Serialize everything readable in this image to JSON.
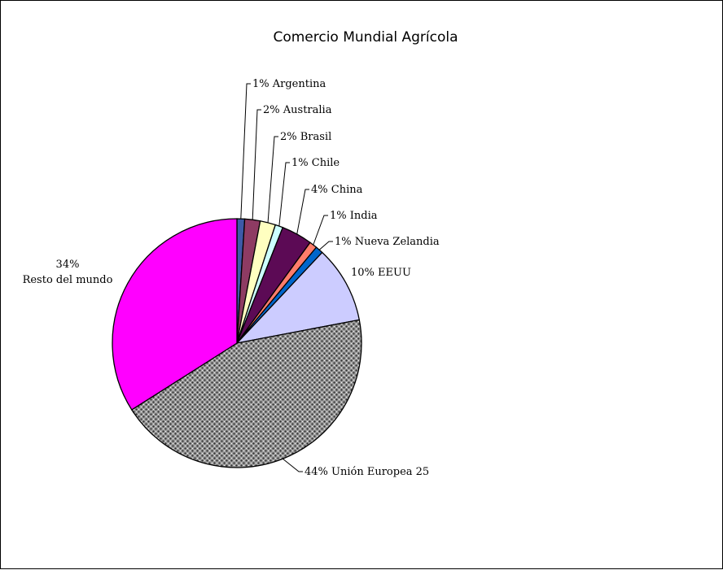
{
  "chart_data": {
    "type": "pie",
    "title": "Comercio Mundial Agrícola",
    "start_angle_deg": 90,
    "direction": "clockwise",
    "slices": [
      {
        "name": "Argentina",
        "value": 1,
        "label": "1% Argentina",
        "color": "#3d5aa8"
      },
      {
        "name": "Australia",
        "value": 2,
        "label": "2% Australia",
        "color": "#8e3b63"
      },
      {
        "name": "Brasil",
        "value": 2,
        "label": "2% Brasil",
        "color": "#ffffc0"
      },
      {
        "name": "Chile",
        "value": 1,
        "label": "1% Chile",
        "color": "#ccffff"
      },
      {
        "name": "China",
        "value": 4,
        "label": "4% China",
        "color": "#5c0a55"
      },
      {
        "name": "India",
        "value": 1,
        "label": "1% India",
        "color": "#ff7d6b"
      },
      {
        "name": "Nueva Zelandia",
        "value": 1,
        "label": "1% Nueva Zelandia",
        "color": "#0066cc"
      },
      {
        "name": "EEUU",
        "value": 10,
        "label": "10% EEUU",
        "color": "#ccccff"
      },
      {
        "name": "Unión Europea 25",
        "value": 44,
        "label": "44% Unión Europea 25",
        "color": "#8a8a8a",
        "pattern": "dots"
      },
      {
        "name": "Resto del mundo",
        "value": 34,
        "label_lines": [
          "34%",
          "Resto del mundo"
        ],
        "color": "#ff00ff"
      }
    ]
  }
}
